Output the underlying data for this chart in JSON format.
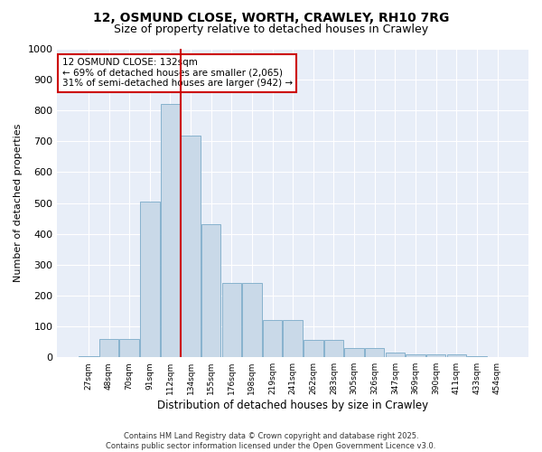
{
  "title_line1": "12, OSMUND CLOSE, WORTH, CRAWLEY, RH10 7RG",
  "title_line2": "Size of property relative to detached houses in Crawley",
  "xlabel": "Distribution of detached houses by size in Crawley",
  "ylabel": "Number of detached properties",
  "categories": [
    "27sqm",
    "48sqm",
    "70sqm",
    "91sqm",
    "112sqm",
    "134sqm",
    "155sqm",
    "176sqm",
    "198sqm",
    "219sqm",
    "241sqm",
    "262sqm",
    "283sqm",
    "305sqm",
    "326sqm",
    "347sqm",
    "369sqm",
    "390sqm",
    "411sqm",
    "433sqm",
    "454sqm"
  ],
  "values": [
    5,
    60,
    60,
    505,
    820,
    720,
    430,
    240,
    240,
    120,
    120,
    55,
    55,
    30,
    30,
    15,
    10,
    10,
    10,
    5,
    2
  ],
  "bar_color": "#c9d9e8",
  "bar_edge_color": "#7aaac8",
  "vline_index": 4.5,
  "vline_color": "#cc0000",
  "annotation_text": "12 OSMUND CLOSE: 132sqm\n← 69% of detached houses are smaller (2,065)\n31% of semi-detached houses are larger (942) →",
  "annotation_box_edge_color": "#cc0000",
  "ylim": [
    0,
    1000
  ],
  "yticks": [
    0,
    100,
    200,
    300,
    400,
    500,
    600,
    700,
    800,
    900,
    1000
  ],
  "fig_background_color": "#ffffff",
  "plot_background_color": "#e8eef8",
  "grid_color": "#ffffff",
  "footer": "Contains HM Land Registry data © Crown copyright and database right 2025.\nContains public sector information licensed under the Open Government Licence v3.0.",
  "title_fontsize": 10,
  "subtitle_fontsize": 9,
  "ylabel_text": "Number of detached properties",
  "annotation_fontsize": 7.5
}
